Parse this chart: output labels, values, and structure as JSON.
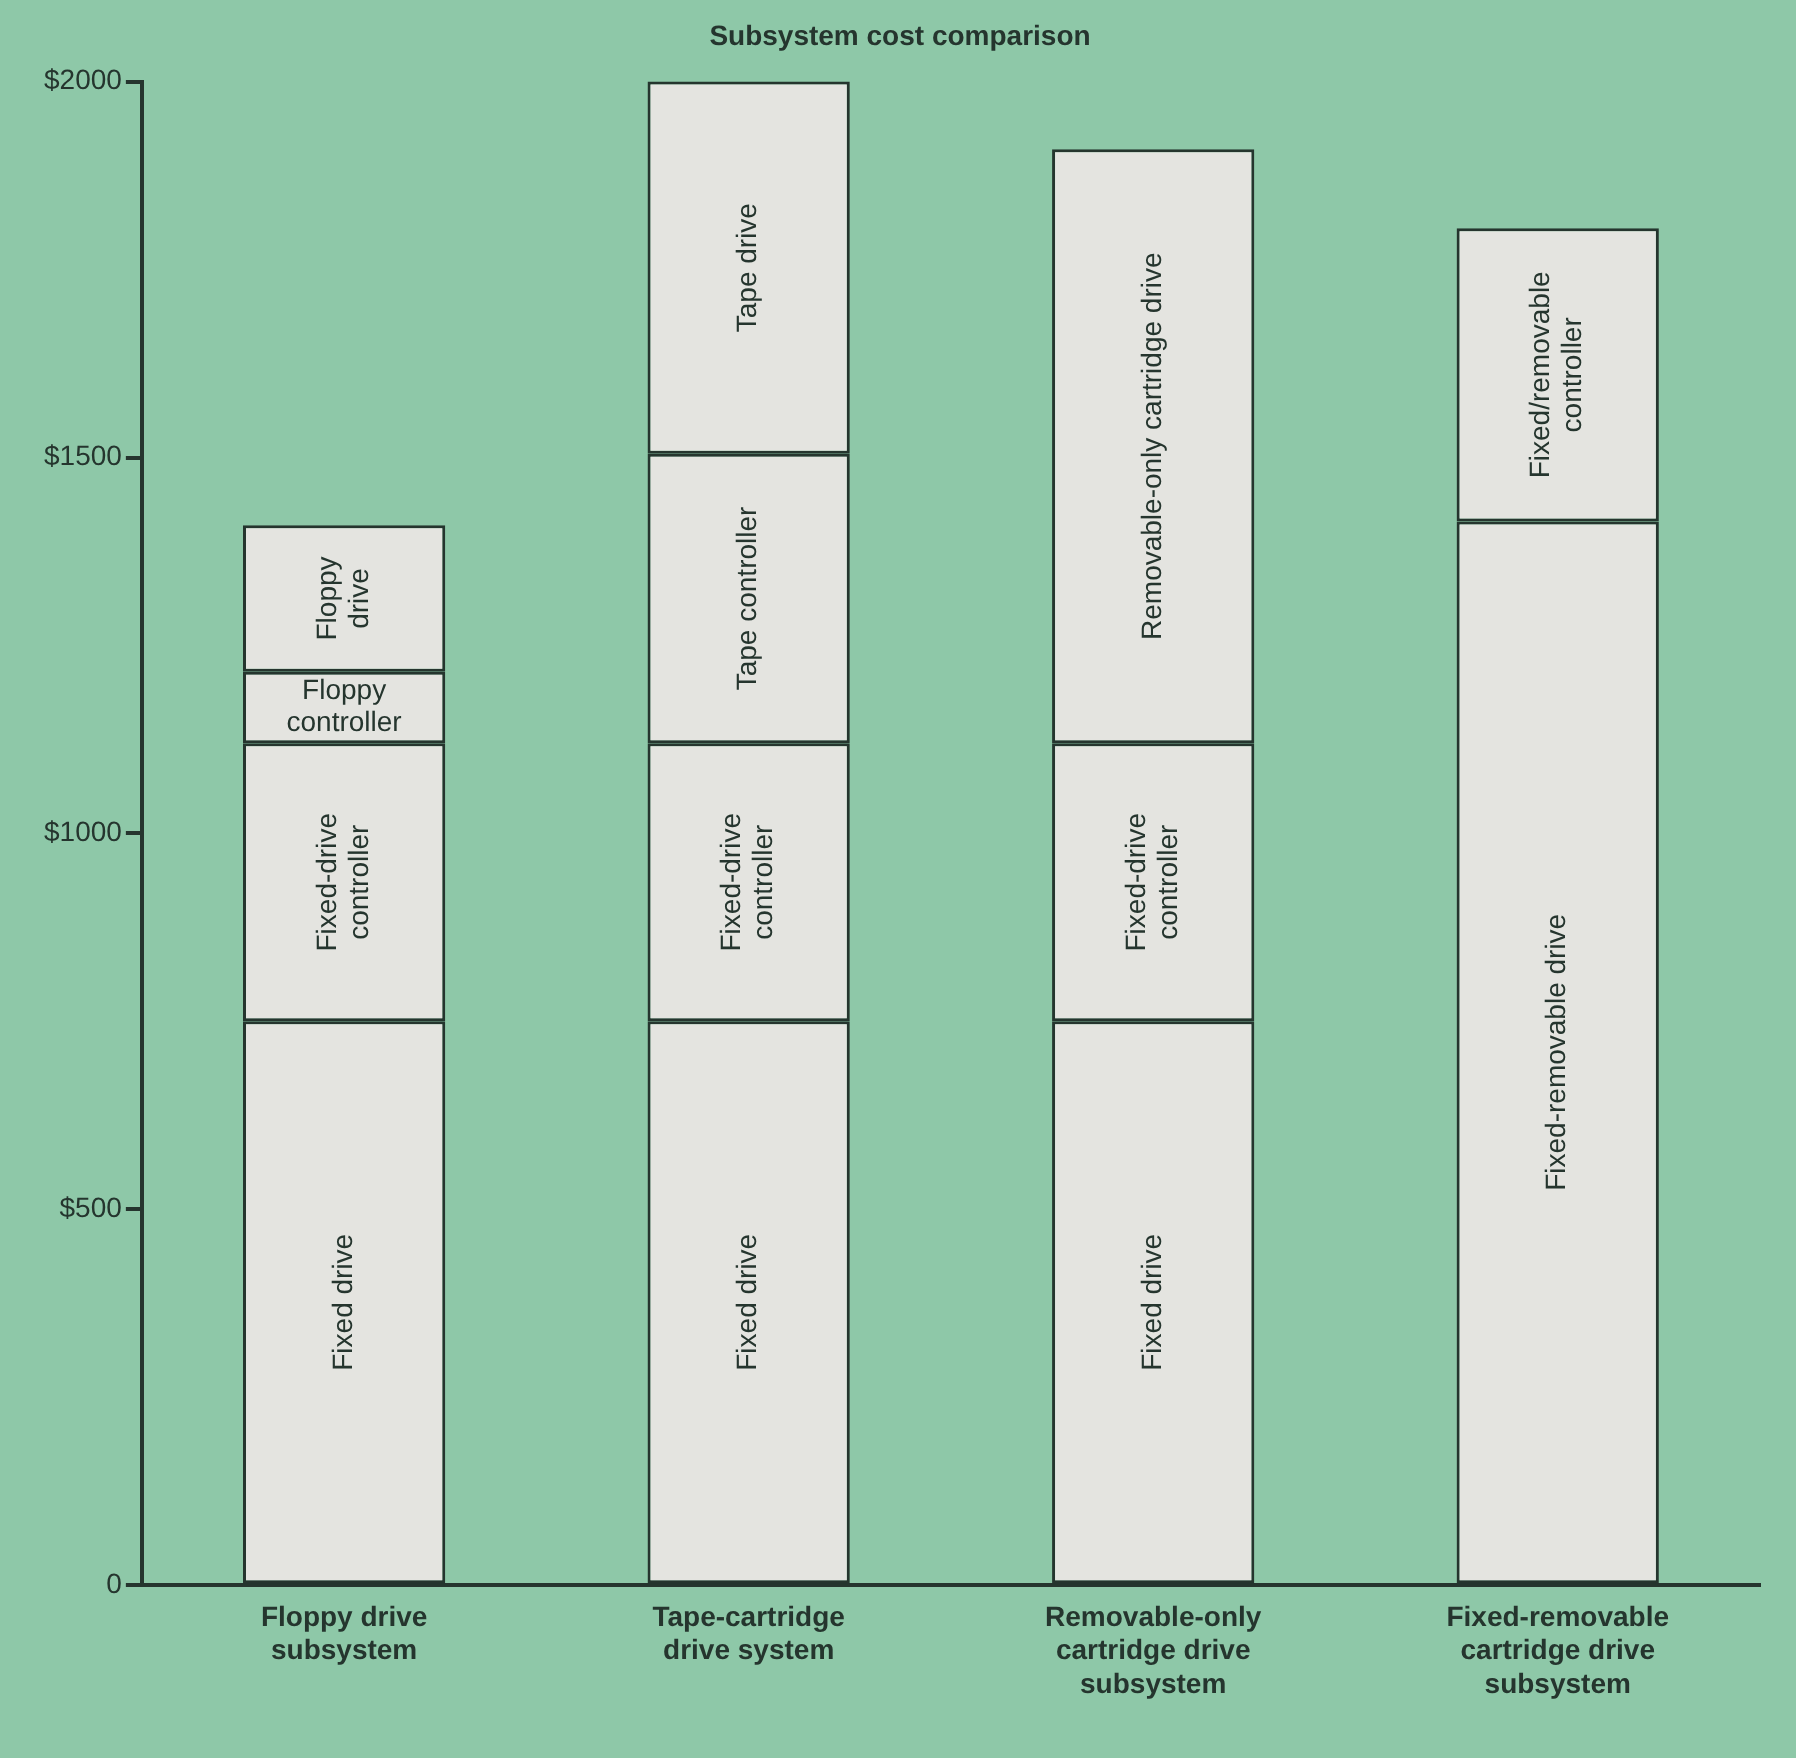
{
  "chart_data": {
    "type": "bar",
    "title": "Subsystem cost comparison",
    "stacked": true,
    "grid": false,
    "legend": false,
    "categories": [
      "Floppy drive subsystem",
      "Tape-cartridge drive system",
      "Removable-only cartridge drive subsystem",
      "Fixed-removable cartridge drive subsystem"
    ],
    "ylim": [
      0,
      2000
    ],
    "yticks": [
      0,
      {
        "value": 500,
        "label": "$500"
      },
      {
        "value": 1000,
        "label": "$1000"
      },
      {
        "value": 1500,
        "label": "$1500"
      },
      {
        "value": 2000,
        "label": "$2000"
      }
    ],
    "series": [
      {
        "name": "Fixed drive",
        "color": "#e4e4e0",
        "values": [
          750,
          750,
          750,
          null
        ]
      },
      {
        "name": "Fixed-drive controller",
        "color": "#e4e4e0",
        "values": [
          370,
          370,
          370,
          null
        ]
      },
      {
        "name": "Floppy controller",
        "color": "#e4e4e0",
        "values": [
          95,
          null,
          null,
          null
        ]
      },
      {
        "name": "Floppy drive",
        "color": "#e4e4e0",
        "values": [
          195,
          null,
          null,
          null
        ]
      },
      {
        "name": "Tape controller",
        "color": "#e4e4e0",
        "values": [
          null,
          385,
          null,
          null
        ]
      },
      {
        "name": "Tape drive",
        "color": "#e4e4e0",
        "values": [
          null,
          495,
          null,
          null
        ]
      },
      {
        "name": "Removable-only cartridge drive",
        "color": "#e4e4e0",
        "values": [
          null,
          null,
          790,
          null
        ]
      },
      {
        "name": "Fixed-removable drive",
        "color": "#e4e4e0",
        "values": [
          null,
          null,
          null,
          1415
        ]
      },
      {
        "name": "Fixed/removable controller",
        "color": "#e4e4e0",
        "values": [
          null,
          null,
          null,
          390
        ]
      }
    ]
  }
}
